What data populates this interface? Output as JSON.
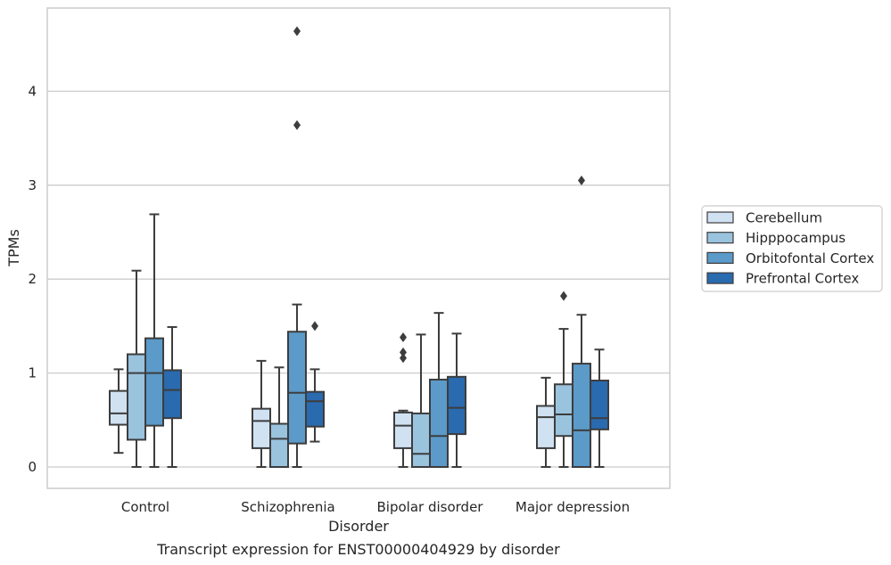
{
  "chart_data": {
    "type": "boxplot",
    "title": "",
    "caption": "Transcript expression for ENST00000404929 by disorder",
    "xlabel": "Disorder",
    "ylabel": "TPMs",
    "ylim": [
      -0.22,
      4.89
    ],
    "yticks": [
      0,
      1,
      2,
      3,
      4
    ],
    "categories": [
      "Control",
      "Schizophrenia",
      "Bipolar disorder",
      "Major depression"
    ],
    "grid": "horizontal",
    "legend_position": "right",
    "series": [
      {
        "name": "Cerebellum",
        "color": "#d0e1f2",
        "boxes": [
          {
            "whislo": 0.15,
            "q1": 0.45,
            "med": 0.57,
            "q3": 0.81,
            "whishi": 1.04,
            "fliers": []
          },
          {
            "whislo": 0.0,
            "q1": 0.2,
            "med": 0.49,
            "q3": 0.62,
            "whishi": 1.13,
            "fliers": []
          },
          {
            "whislo": 0.0,
            "q1": 0.2,
            "med": 0.44,
            "q3": 0.58,
            "whishi": 0.6,
            "fliers": [
              1.16,
              1.22,
              1.38
            ]
          },
          {
            "whislo": 0.0,
            "q1": 0.2,
            "med": 0.53,
            "q3": 0.65,
            "whishi": 0.95,
            "fliers": []
          }
        ]
      },
      {
        "name": "Hipppocampus",
        "color": "#9ac3de",
        "boxes": [
          {
            "whislo": 0.0,
            "q1": 0.29,
            "med": 1.0,
            "q3": 1.2,
            "whishi": 2.09,
            "fliers": []
          },
          {
            "whislo": 0.0,
            "q1": 0.0,
            "med": 0.3,
            "q3": 0.46,
            "whishi": 1.06,
            "fliers": []
          },
          {
            "whislo": 0.0,
            "q1": 0.0,
            "med": 0.14,
            "q3": 0.57,
            "whishi": 1.41,
            "fliers": []
          },
          {
            "whislo": 0.0,
            "q1": 0.33,
            "med": 0.56,
            "q3": 0.88,
            "whishi": 1.47,
            "fliers": [
              1.82
            ]
          }
        ]
      },
      {
        "name": "Orbitofontal Cortex",
        "color": "#5b9ac9",
        "boxes": [
          {
            "whislo": 0.0,
            "q1": 0.44,
            "med": 1.0,
            "q3": 1.37,
            "whishi": 2.69,
            "fliers": []
          },
          {
            "whislo": 0.0,
            "q1": 0.25,
            "med": 0.79,
            "q3": 1.44,
            "whishi": 1.73,
            "fliers": [
              3.64,
              4.64
            ]
          },
          {
            "whislo": 0.0,
            "q1": 0.0,
            "med": 0.33,
            "q3": 0.93,
            "whishi": 1.64,
            "fliers": []
          },
          {
            "whislo": 0.0,
            "q1": 0.0,
            "med": 0.39,
            "q3": 1.1,
            "whishi": 1.62,
            "fliers": [
              3.05
            ]
          }
        ]
      },
      {
        "name": "Prefrontal Cortex",
        "color": "#2a6aaf",
        "boxes": [
          {
            "whislo": 0.0,
            "q1": 0.52,
            "med": 0.82,
            "q3": 1.03,
            "whishi": 1.49,
            "fliers": []
          },
          {
            "whislo": 0.27,
            "q1": 0.43,
            "med": 0.7,
            "q3": 0.8,
            "whishi": 1.04,
            "fliers": [
              1.5
            ]
          },
          {
            "whislo": 0.0,
            "q1": 0.35,
            "med": 0.63,
            "q3": 0.96,
            "whishi": 1.42,
            "fliers": []
          },
          {
            "whislo": 0.0,
            "q1": 0.4,
            "med": 0.52,
            "q3": 0.92,
            "whishi": 1.25,
            "fliers": []
          }
        ]
      }
    ]
  }
}
